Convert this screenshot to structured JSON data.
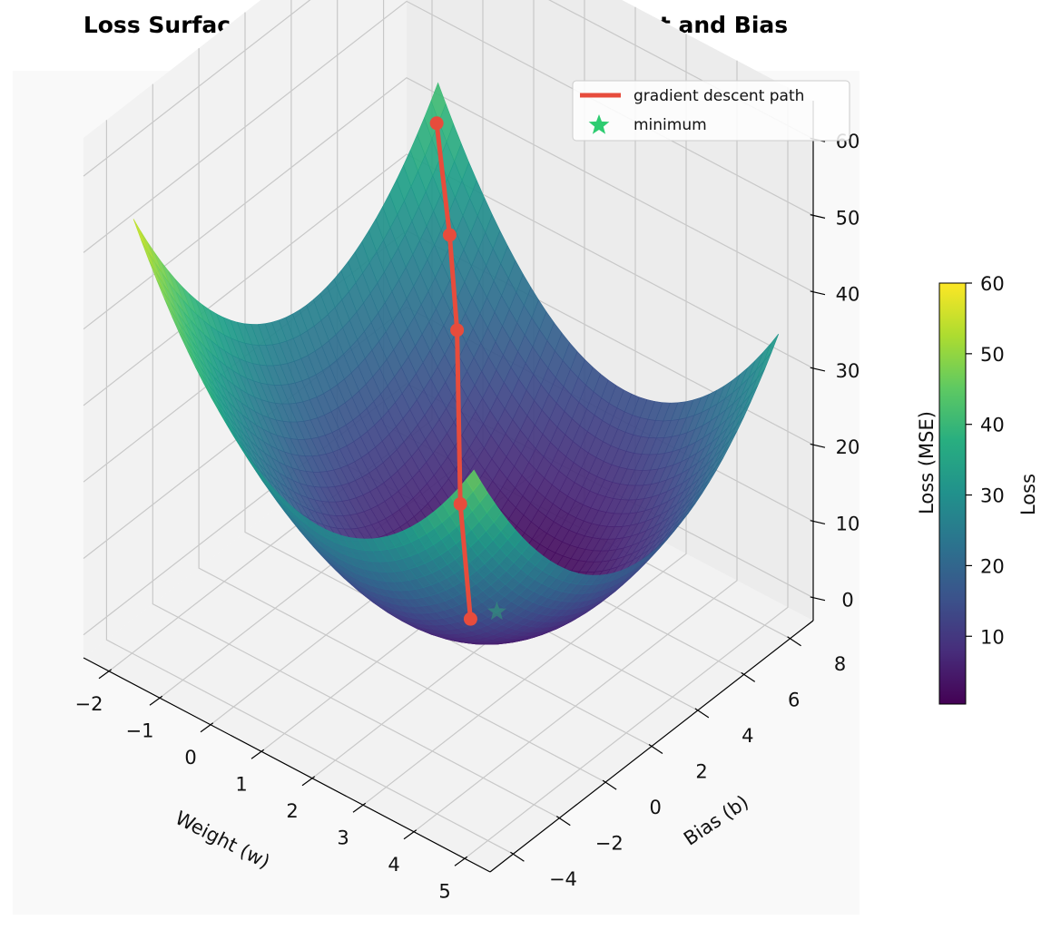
{
  "chart_data": {
    "type": "surface3d",
    "title": "Loss Surface: How Error Changes with Weight and Bias",
    "xlabel": "Weight (w)",
    "ylabel": "Bias (b)",
    "zlabel": "Loss (MSE)",
    "x_ticks": [
      "−2",
      "−1",
      "0",
      "1",
      "2",
      "3",
      "4",
      "5"
    ],
    "y_ticks": [
      "−4",
      "−2",
      "0",
      "2",
      "4",
      "6",
      "8"
    ],
    "z_ticks": [
      "0",
      "10",
      "20",
      "30",
      "40",
      "50",
      "60"
    ],
    "xlim": [
      -2.5,
      5.5
    ],
    "ylim": [
      -5,
      9
    ],
    "zlim": [
      -3,
      65
    ],
    "surface": {
      "function": "min(2*(w-2)^2 + 0.5*(b-3)^2, 60)",
      "clip_max": 60,
      "colormap": "viridis"
    },
    "series": [
      {
        "name": "gradient descent path",
        "color": "#e74c3c",
        "points": [
          {
            "w": -1.0,
            "b": 7.0,
            "loss": 44
          },
          {
            "w": -0.2,
            "b": 5.8,
            "loss": 35
          },
          {
            "w": 0.4,
            "b": 4.8,
            "loss": 27
          },
          {
            "w": 1.1,
            "b": 3.4,
            "loss": 10
          },
          {
            "w": 1.8,
            "b": 2.3,
            "loss": 0
          }
        ]
      }
    ],
    "minimum": {
      "name": "minimum",
      "w": 2,
      "b": 3,
      "loss": 0,
      "color": "#2ecc71"
    },
    "colorbar": {
      "label": "Loss",
      "range": [
        0.4,
        60
      ],
      "ticks": [
        "10",
        "20",
        "30",
        "40",
        "50",
        "60"
      ],
      "tick_values": [
        10,
        20,
        30,
        40,
        50,
        60
      ]
    },
    "legend": {
      "position": "top-right",
      "entries": [
        "gradient descent path",
        "minimum"
      ]
    }
  }
}
